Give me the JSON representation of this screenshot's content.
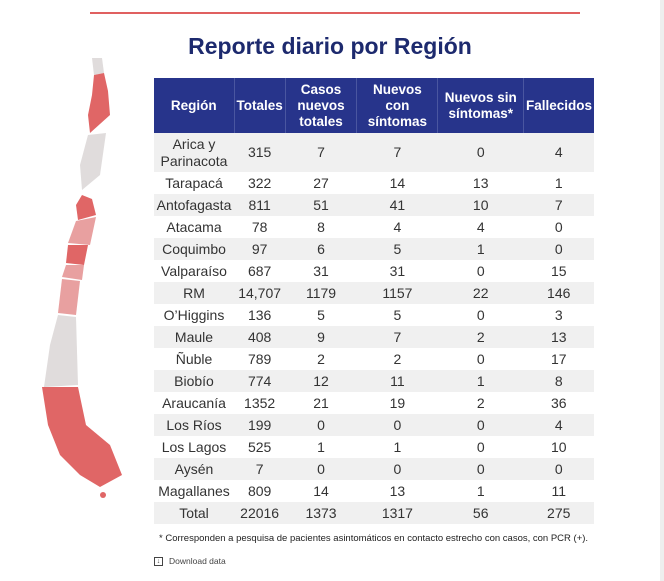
{
  "title": "Reporte diario por Región",
  "chart_data": {
    "type": "table",
    "columns": [
      "Región",
      "Totales",
      "Casos nuevos totales",
      "Nuevos con síntomas",
      "Nuevos sin síntomas*",
      "Fallecidos"
    ],
    "rows": [
      [
        "Arica y Parinacota",
        "315",
        "7",
        "7",
        "0",
        "4"
      ],
      [
        "Tarapacá",
        "322",
        "27",
        "14",
        "13",
        "1"
      ],
      [
        "Antofagasta",
        "811",
        "51",
        "41",
        "10",
        "7"
      ],
      [
        "Atacama",
        "78",
        "8",
        "4",
        "4",
        "0"
      ],
      [
        "Coquimbo",
        "97",
        "6",
        "5",
        "1",
        "0"
      ],
      [
        "Valparaíso",
        "687",
        "31",
        "31",
        "0",
        "15"
      ],
      [
        "RM",
        "14,707",
        "1179",
        "1157",
        "22",
        "146"
      ],
      [
        "O’Higgins",
        "136",
        "5",
        "5",
        "0",
        "3"
      ],
      [
        "Maule",
        "408",
        "9",
        "7",
        "2",
        "13"
      ],
      [
        "Ñuble",
        "789",
        "2",
        "2",
        "0",
        "17"
      ],
      [
        "Biobío",
        "774",
        "12",
        "11",
        "1",
        "8"
      ],
      [
        "Araucanía",
        "1352",
        "21",
        "19",
        "2",
        "36"
      ],
      [
        "Los Ríos",
        "199",
        "0",
        "0",
        "0",
        "4"
      ],
      [
        "Los Lagos",
        "525",
        "1",
        "1",
        "0",
        "10"
      ],
      [
        "Aysén",
        "7",
        "0",
        "0",
        "0",
        "0"
      ],
      [
        "Magallanes",
        "809",
        "14",
        "13",
        "1",
        "11"
      ],
      [
        "Total",
        "22016",
        "1373",
        "1317",
        "56",
        "275"
      ]
    ]
  },
  "note": "* Corresponden a pesquisa de pacientes asintomáticos en contacto estrecho con casos, con PCR (+).",
  "download_label": "Download data",
  "colors": {
    "header": "#27348b",
    "title": "#1d2a6e",
    "accent": "#e06060",
    "map_high": "#e06666",
    "map_mid": "#e8a0a0",
    "map_low": "#e0dcdc"
  }
}
